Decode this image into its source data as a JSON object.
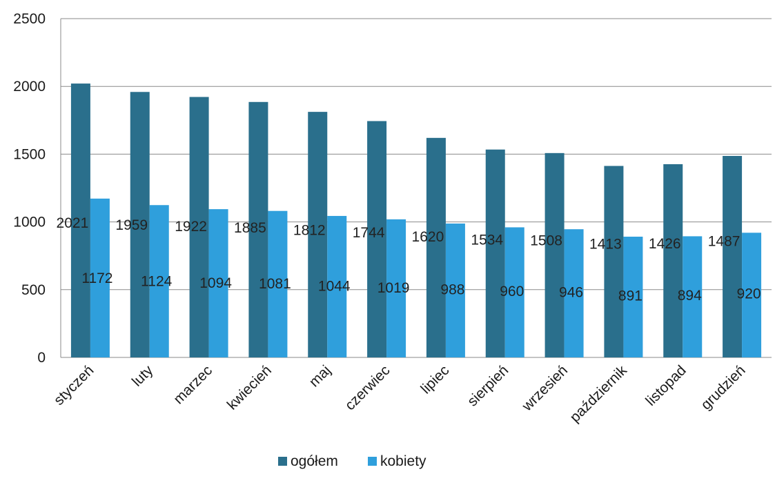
{
  "chart_data": {
    "type": "bar",
    "categories": [
      "styczeń",
      "luty",
      "marzec",
      "kwiecień",
      "maj",
      "czerwiec",
      "lipiec",
      "sierpień",
      "wrzesień",
      "październik",
      "listopad",
      "grudzień"
    ],
    "series": [
      {
        "name": "ogółem",
        "color": "#2a6f8c",
        "values": [
          2021,
          1959,
          1922,
          1885,
          1812,
          1744,
          1620,
          1534,
          1508,
          1413,
          1426,
          1487
        ]
      },
      {
        "name": "kobiety",
        "color": "#2f9fdc",
        "values": [
          1172,
          1124,
          1094,
          1081,
          1044,
          1019,
          988,
          960,
          946,
          891,
          894,
          920
        ]
      }
    ],
    "ylim": [
      0,
      2500
    ],
    "yticks": [
      "0",
      "500",
      "1000",
      "1500",
      "2000",
      "2500"
    ],
    "grid": true,
    "legend": "bottom",
    "title": "",
    "xlabel": "",
    "ylabel": ""
  }
}
